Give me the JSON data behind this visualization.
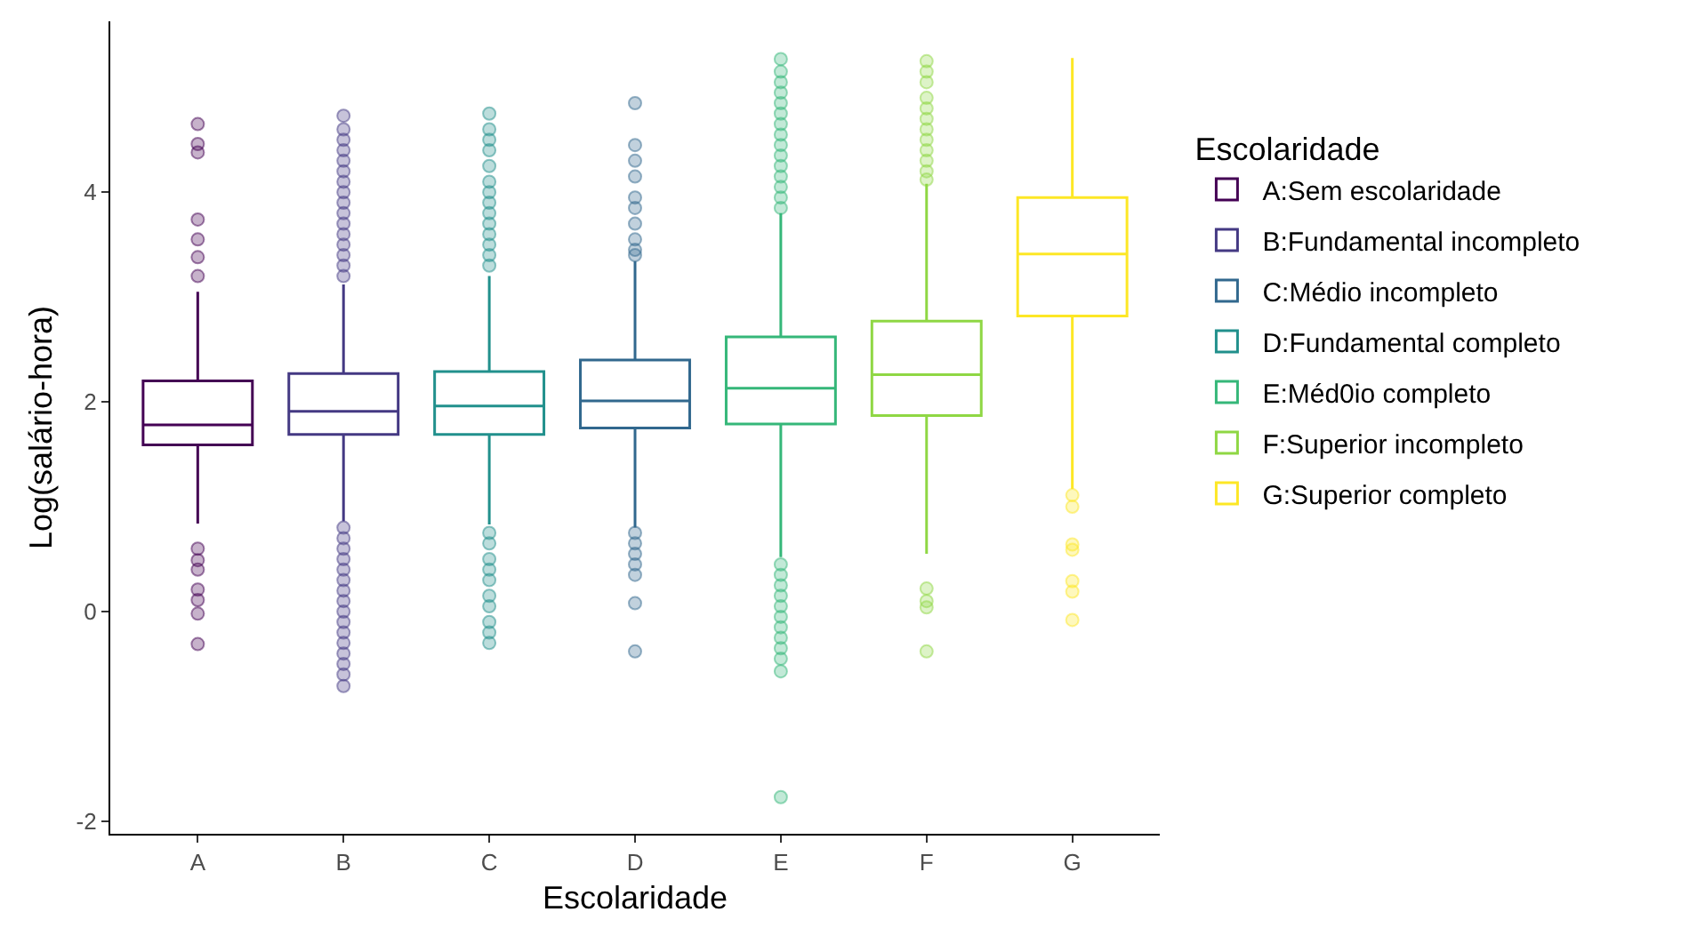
{
  "chart_data": {
    "type": "box",
    "xlabel": "Escolaridade",
    "ylabel": "Log(salário-hora)",
    "legend_title": "Escolaridade",
    "legend": "right",
    "grid": false,
    "marker": "circle",
    "categories": [
      "A",
      "B",
      "C",
      "D",
      "E",
      "F",
      "G"
    ],
    "ylim": [
      -2.12,
      5.63
    ],
    "yticks": [
      -2,
      0,
      2,
      4
    ],
    "series": [
      {
        "name": "A:Sem escolaridade",
        "color": "#440154",
        "x": [
          "A"
        ],
        "boxes": [
          {
            "low": 0.84,
            "q1": 1.59,
            "median": 1.78,
            "q3": 2.2,
            "high": 3.05,
            "outliers": [
              4.65,
              4.46,
              4.38,
              3.74,
              3.55,
              3.38,
              3.2,
              0.6,
              0.49,
              0.4,
              0.21,
              0.11,
              -0.02,
              -0.31
            ]
          }
        ]
      },
      {
        "name": "B:Fundamental incompleto",
        "color": "#443983",
        "x": [
          "B"
        ],
        "boxes": [
          {
            "low": 0.86,
            "q1": 1.69,
            "median": 1.91,
            "q3": 2.27,
            "high": 3.12,
            "outliers": [
              4.73,
              4.6,
              4.5,
              4.4,
              4.3,
              4.2,
              4.1,
              4.0,
              3.9,
              3.8,
              3.7,
              3.6,
              3.5,
              3.4,
              3.3,
              3.2,
              0.8,
              0.7,
              0.6,
              0.5,
              0.4,
              0.3,
              0.2,
              0.1,
              0.0,
              -0.1,
              -0.2,
              -0.3,
              -0.4,
              -0.5,
              -0.6,
              -0.71
            ]
          }
        ]
      },
      {
        "name": "C:Médio incompleto",
        "color": "#31688e",
        "x": [
          "D"
        ],
        "boxes": [
          {
            "low": 0.8,
            "q1": 1.75,
            "median": 2.01,
            "q3": 2.4,
            "high": 3.34,
            "outliers": [
              4.85,
              4.45,
              4.3,
              4.15,
              3.95,
              3.85,
              3.7,
              3.55,
              3.45,
              3.4,
              0.75,
              0.65,
              0.55,
              0.45,
              0.35,
              0.08,
              -0.38
            ]
          }
        ]
      },
      {
        "name": "D:Fundamental completo",
        "color": "#21908c",
        "x": [
          "C"
        ],
        "boxes": [
          {
            "low": 0.83,
            "q1": 1.69,
            "median": 1.96,
            "q3": 2.29,
            "high": 3.2,
            "outliers": [
              4.75,
              4.6,
              4.5,
              4.4,
              4.25,
              4.1,
              4.0,
              3.9,
              3.8,
              3.7,
              3.6,
              3.5,
              3.4,
              3.3,
              0.75,
              0.65,
              0.5,
              0.4,
              0.3,
              0.15,
              0.05,
              -0.1,
              -0.2,
              -0.3
            ]
          }
        ]
      },
      {
        "name": "E:Méd0io completo",
        "color": "#35b779",
        "x": [
          "E"
        ],
        "boxes": [
          {
            "low": 0.52,
            "q1": 1.79,
            "median": 2.13,
            "q3": 2.62,
            "high": 3.8,
            "outliers": [
              5.27,
              5.15,
              5.05,
              4.95,
              4.85,
              4.75,
              4.65,
              4.55,
              4.45,
              4.35,
              4.25,
              4.15,
              4.05,
              3.95,
              3.85,
              0.45,
              0.35,
              0.25,
              0.15,
              0.05,
              -0.05,
              -0.15,
              -0.25,
              -0.35,
              -0.45,
              -0.57,
              -1.77
            ]
          }
        ]
      },
      {
        "name": "F:Superior incompleto",
        "color": "#8fd744",
        "x": [
          "F"
        ],
        "boxes": [
          {
            "low": 0.55,
            "q1": 1.87,
            "median": 2.26,
            "q3": 2.77,
            "high": 4.08,
            "outliers": [
              5.25,
              5.15,
              5.05,
              4.9,
              4.8,
              4.7,
              4.6,
              4.5,
              4.4,
              4.3,
              4.2,
              4.12,
              0.22,
              0.1,
              0.04,
              -0.38
            ]
          }
        ]
      },
      {
        "name": "G:Superior completo",
        "color": "#fde725",
        "x": [
          "G"
        ],
        "boxes": [
          {
            "low": 1.17,
            "q1": 2.82,
            "median": 3.41,
            "q3": 3.95,
            "high": 5.28,
            "outliers": [
              1.11,
              1.0,
              0.64,
              0.59,
              0.29,
              0.19,
              -0.08
            ]
          }
        ]
      }
    ]
  }
}
